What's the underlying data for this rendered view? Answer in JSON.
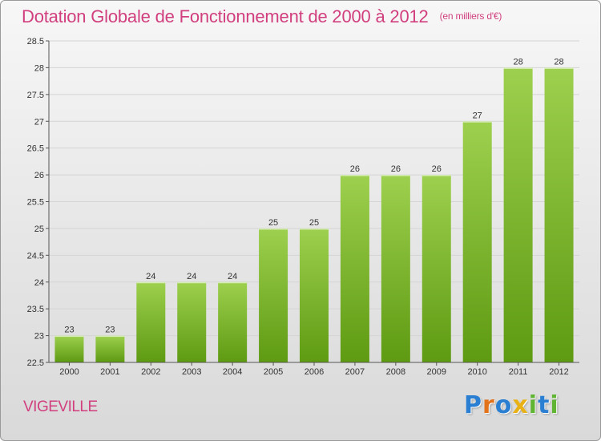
{
  "header": {
    "title": "Dotation Globale de Fonctionnement de 2000 à 2012",
    "subtitle": "(en milliers d'€)"
  },
  "footer": {
    "commune": "VIGEVILLE",
    "logo_text": "Proxiti"
  },
  "colors": {
    "accent": "#d13f7e",
    "bar_top": "#9dd04e",
    "bar_bottom": "#5e9a12",
    "grid": "#d4d4d4"
  },
  "chart_data": {
    "type": "bar",
    "title": "Dotation Globale de Fonctionnement de 2000 à 2012",
    "subtitle": "(en milliers d'€)",
    "xlabel": "",
    "ylabel": "",
    "categories": [
      "2000",
      "2001",
      "2002",
      "2003",
      "2004",
      "2005",
      "2006",
      "2007",
      "2008",
      "2009",
      "2010",
      "2011",
      "2012"
    ],
    "values": [
      23,
      23,
      24,
      24,
      24,
      25,
      25,
      26,
      26,
      26,
      27,
      28,
      28
    ],
    "data_labels": [
      "23",
      "23",
      "24",
      "24",
      "24",
      "25",
      "25",
      "26",
      "26",
      "26",
      "27",
      "28",
      "28"
    ],
    "ylim": [
      22.5,
      28.5
    ],
    "yticks": [
      22.5,
      23,
      23.5,
      24,
      24.5,
      25,
      25.5,
      26,
      26.5,
      27,
      27.5,
      28,
      28.5
    ],
    "ytick_labels": [
      "22.5",
      "23",
      "23.5",
      "24",
      "24.5",
      "25",
      "25.5",
      "26",
      "26.5",
      "27",
      "27.5",
      "28",
      "28.5"
    ],
    "grid": true,
    "legend": "none"
  }
}
